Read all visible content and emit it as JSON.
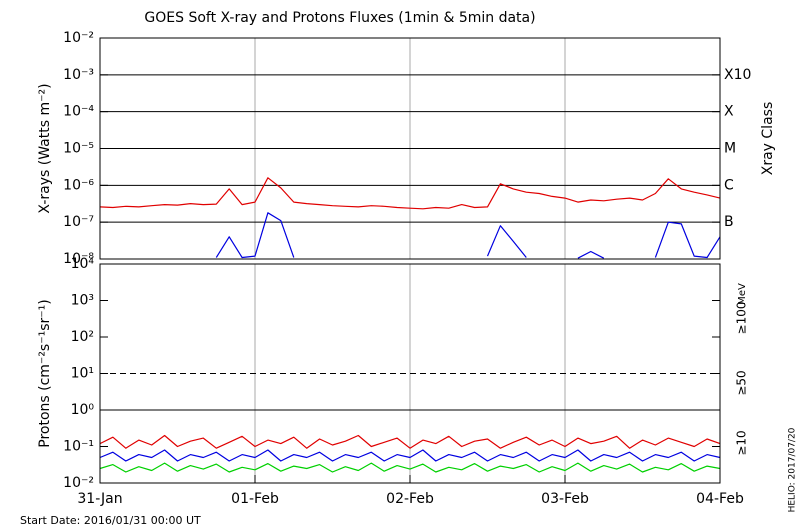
{
  "chart_data": [
    {
      "type": "line",
      "title": "GOES Soft X-ray and Protons Fluxes   (1min & 5min data)",
      "ylabel": "X-rays (Watts m⁻²)",
      "y2label": "Xray Class",
      "log_scale": true,
      "grid": true,
      "xlim": [
        0,
        96
      ],
      "day_lines": [
        24,
        48,
        72
      ],
      "ylim": [
        1e-08,
        0.01
      ],
      "yticks": [
        {
          "value": 1e-08,
          "label": "10⁻⁸"
        },
        {
          "value": 1e-07,
          "label": "10⁻⁷"
        },
        {
          "value": 1e-06,
          "label": "10⁻⁶"
        },
        {
          "value": 1e-05,
          "label": "10⁻⁵"
        },
        {
          "value": 0.0001,
          "label": "10⁻⁴"
        },
        {
          "value": 0.001,
          "label": "10⁻³"
        },
        {
          "value": 0.01,
          "label": "10⁻²"
        }
      ],
      "y2ticks": [
        {
          "value": 0.001,
          "label": "X10"
        },
        {
          "value": 0.0001,
          "label": "X"
        },
        {
          "value": 1e-05,
          "label": "M"
        },
        {
          "value": 1e-06,
          "label": "C"
        },
        {
          "value": 1e-07,
          "label": "B"
        }
      ],
      "x": [
        0,
        2,
        4,
        6,
        8,
        10,
        12,
        14,
        16,
        18,
        20,
        22,
        24,
        26,
        28,
        30,
        32,
        34,
        36,
        38,
        40,
        42,
        44,
        46,
        48,
        50,
        52,
        54,
        56,
        58,
        60,
        62,
        64,
        66,
        68,
        70,
        72,
        74,
        76,
        78,
        80,
        82,
        84,
        86,
        88,
        90,
        92,
        94,
        96
      ],
      "series": [
        {
          "color": "#e00000",
          "values": [
            2.6e-07,
            2.5e-07,
            2.7e-07,
            2.6e-07,
            2.8e-07,
            3e-07,
            2.9e-07,
            3.2e-07,
            3e-07,
            3.1e-07,
            8e-07,
            3e-07,
            3.5e-07,
            1.6e-06,
            8.5e-07,
            3.5e-07,
            3.2e-07,
            3e-07,
            2.8e-07,
            2.7e-07,
            2.6e-07,
            2.8e-07,
            2.7e-07,
            2.5e-07,
            2.4e-07,
            2.3e-07,
            2.5e-07,
            2.4e-07,
            3e-07,
            2.5e-07,
            2.6e-07,
            1.1e-06,
            8e-07,
            6.5e-07,
            6e-07,
            5e-07,
            4.5e-07,
            3.5e-07,
            4e-07,
            3.8e-07,
            4.2e-07,
            4.5e-07,
            4e-07,
            6e-07,
            1.5e-06,
            8e-07,
            6.5e-07,
            5.5e-07,
            4.5e-07
          ]
        },
        {
          "color": "#0000e0",
          "values": [
            null,
            null,
            null,
            null,
            null,
            null,
            null,
            null,
            null,
            1.1e-08,
            4e-08,
            1.1e-08,
            1.2e-08,
            1.8e-07,
            1.1e-07,
            1.1e-08,
            null,
            null,
            null,
            null,
            null,
            null,
            null,
            null,
            null,
            null,
            null,
            null,
            null,
            null,
            1.2e-08,
            8e-08,
            3e-08,
            1.1e-08,
            null,
            null,
            null,
            1.05e-08,
            1.6e-08,
            1.05e-08,
            null,
            null,
            null,
            1.1e-08,
            1e-07,
            9e-08,
            1.2e-08,
            1.1e-08,
            4e-08
          ]
        }
      ]
    },
    {
      "type": "line",
      "ylabel": "Protons (cm⁻²s⁻¹sr⁻¹)",
      "y2label": "MeV",
      "log_scale": true,
      "xlim": [
        0,
        96
      ],
      "day_lines": [
        24,
        48,
        72
      ],
      "reference_lines": [
        {
          "value": 1,
          "style": "solid"
        },
        {
          "value": 10,
          "style": "dashed"
        }
      ],
      "ylim": [
        0.01,
        10000.0
      ],
      "yticks": [
        {
          "value": 0.01,
          "label": "10⁻²"
        },
        {
          "value": 0.1,
          "label": "10⁻¹"
        },
        {
          "value": 1,
          "label": "10⁰"
        },
        {
          "value": 10,
          "label": "10¹"
        },
        {
          "value": 100,
          "label": "10²"
        },
        {
          "value": 1000,
          "label": "10³"
        },
        {
          "value": 10000,
          "label": "10⁴"
        }
      ],
      "xticks": [
        {
          "value": 0,
          "label": "31-Jan"
        },
        {
          "value": 24,
          "label": "01-Feb"
        },
        {
          "value": 48,
          "label": "02-Feb"
        },
        {
          "value": 72,
          "label": "03-Feb"
        },
        {
          "value": 96,
          "label": "04-Feb"
        }
      ],
      "x": [
        0,
        2,
        4,
        6,
        8,
        10,
        12,
        14,
        16,
        18,
        20,
        22,
        24,
        26,
        28,
        30,
        32,
        34,
        36,
        38,
        40,
        42,
        44,
        46,
        48,
        50,
        52,
        54,
        56,
        58,
        60,
        62,
        64,
        66,
        68,
        70,
        72,
        74,
        76,
        78,
        80,
        82,
        84,
        86,
        88,
        90,
        92,
        94,
        96
      ],
      "series": [
        {
          "name": "≥10",
          "color": "#e00000",
          "values": [
            0.12,
            0.18,
            0.09,
            0.15,
            0.11,
            0.2,
            0.1,
            0.14,
            0.17,
            0.09,
            0.13,
            0.19,
            0.1,
            0.15,
            0.12,
            0.18,
            0.09,
            0.16,
            0.11,
            0.14,
            0.2,
            0.1,
            0.13,
            0.17,
            0.09,
            0.15,
            0.12,
            0.19,
            0.1,
            0.14,
            0.16,
            0.09,
            0.13,
            0.18,
            0.11,
            0.15,
            0.1,
            0.17,
            0.12,
            0.14,
            0.19,
            0.09,
            0.15,
            0.11,
            0.17,
            0.13,
            0.1,
            0.16,
            0.12
          ]
        },
        {
          "name": "≥50",
          "color": "#0000e0",
          "values": [
            0.05,
            0.07,
            0.04,
            0.06,
            0.05,
            0.08,
            0.04,
            0.06,
            0.05,
            0.07,
            0.04,
            0.06,
            0.05,
            0.08,
            0.04,
            0.06,
            0.05,
            0.07,
            0.04,
            0.06,
            0.05,
            0.07,
            0.04,
            0.06,
            0.05,
            0.08,
            0.04,
            0.06,
            0.05,
            0.07,
            0.04,
            0.06,
            0.05,
            0.07,
            0.04,
            0.06,
            0.05,
            0.08,
            0.04,
            0.06,
            0.05,
            0.07,
            0.04,
            0.06,
            0.05,
            0.07,
            0.04,
            0.06,
            0.05
          ]
        },
        {
          "name": "≥100",
          "color": "#00d000",
          "values": [
            0.025,
            0.032,
            0.02,
            0.028,
            0.022,
            0.035,
            0.021,
            0.03,
            0.024,
            0.033,
            0.02,
            0.027,
            0.023,
            0.034,
            0.021,
            0.029,
            0.025,
            0.032,
            0.02,
            0.028,
            0.022,
            0.035,
            0.021,
            0.03,
            0.024,
            0.033,
            0.02,
            0.027,
            0.023,
            0.034,
            0.021,
            0.029,
            0.025,
            0.032,
            0.02,
            0.028,
            0.022,
            0.035,
            0.021,
            0.03,
            0.024,
            0.033,
            0.02,
            0.027,
            0.023,
            0.034,
            0.021,
            0.029,
            0.025
          ]
        }
      ]
    }
  ],
  "footer": {
    "start_date": "Start Date: 2016/01/31 00:00 UT",
    "helio": "HELIO: 2017/07/20"
  }
}
